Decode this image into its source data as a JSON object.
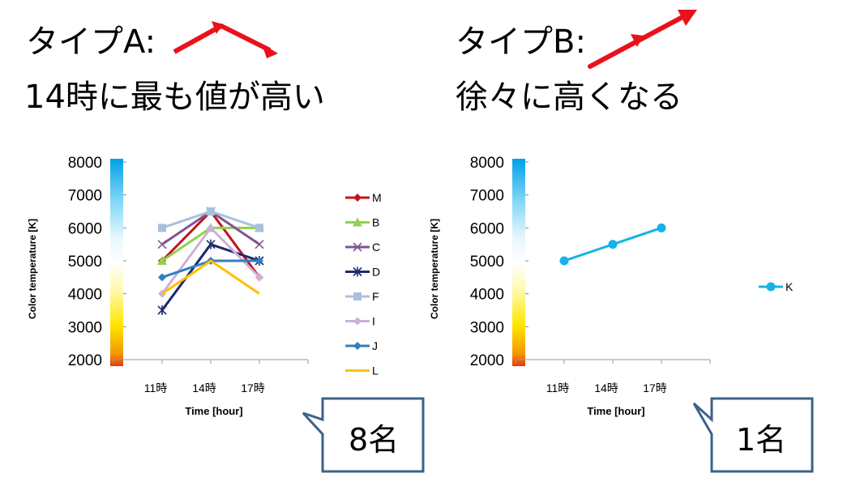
{
  "left": {
    "type_label": "タイプA:",
    "description": "14時に最も値が高い",
    "count_label": "8名"
  },
  "right": {
    "type_label": "タイプB:",
    "description": "徐々に高くなる",
    "count_label": "1名"
  },
  "colors": {
    "arrow": "#e8121b",
    "callout_border": "#3e6287"
  },
  "chart_data": [
    {
      "type": "line",
      "x": [
        "11時",
        "14時",
        "17時"
      ],
      "xlabel": "Time [hour]",
      "ylabel": "Color temperature [K]",
      "ylim": [
        2000,
        8000
      ],
      "yticks": [
        2000,
        3000,
        4000,
        5000,
        6000,
        7000,
        8000
      ],
      "legend": "right",
      "series": [
        {
          "name": "M",
          "values": [
            5000,
            6500,
            4500
          ],
          "color": "#c0141c",
          "marker": "diamond"
        },
        {
          "name": "B",
          "values": [
            5000,
            6000,
            6000
          ],
          "color": "#92d050",
          "marker": "triangle"
        },
        {
          "name": "C",
          "values": [
            5500,
            6500,
            5500
          ],
          "color": "#7f5591",
          "marker": "x"
        },
        {
          "name": "D",
          "values": [
            3500,
            5500,
            5000
          ],
          "color": "#1f2a6e",
          "marker": "star"
        },
        {
          "name": "F",
          "values": [
            6000,
            6500,
            6000
          ],
          "color": "#a8c0dc",
          "marker": "square"
        },
        {
          "name": "I",
          "values": [
            4000,
            6000,
            4500
          ],
          "color": "#ccb0d8",
          "marker": "diamond"
        },
        {
          "name": "J",
          "values": [
            4500,
            5000,
            5000
          ],
          "color": "#2f7fc1",
          "marker": "diamond"
        },
        {
          "name": "L",
          "values": [
            4000,
            5000,
            4000
          ],
          "color": "#ffc000",
          "marker": "none"
        }
      ]
    },
    {
      "type": "line",
      "x": [
        "11時",
        "14時",
        "17時"
      ],
      "xlabel": "Time [hour]",
      "ylabel": "Color temperature [K]",
      "ylim": [
        2000,
        8000
      ],
      "yticks": [
        2000,
        3000,
        4000,
        5000,
        6000,
        7000,
        8000
      ],
      "legend": "right",
      "series": [
        {
          "name": "K",
          "values": [
            5000,
            5500,
            6000
          ],
          "color": "#17b2e8",
          "marker": "circle"
        }
      ]
    }
  ]
}
